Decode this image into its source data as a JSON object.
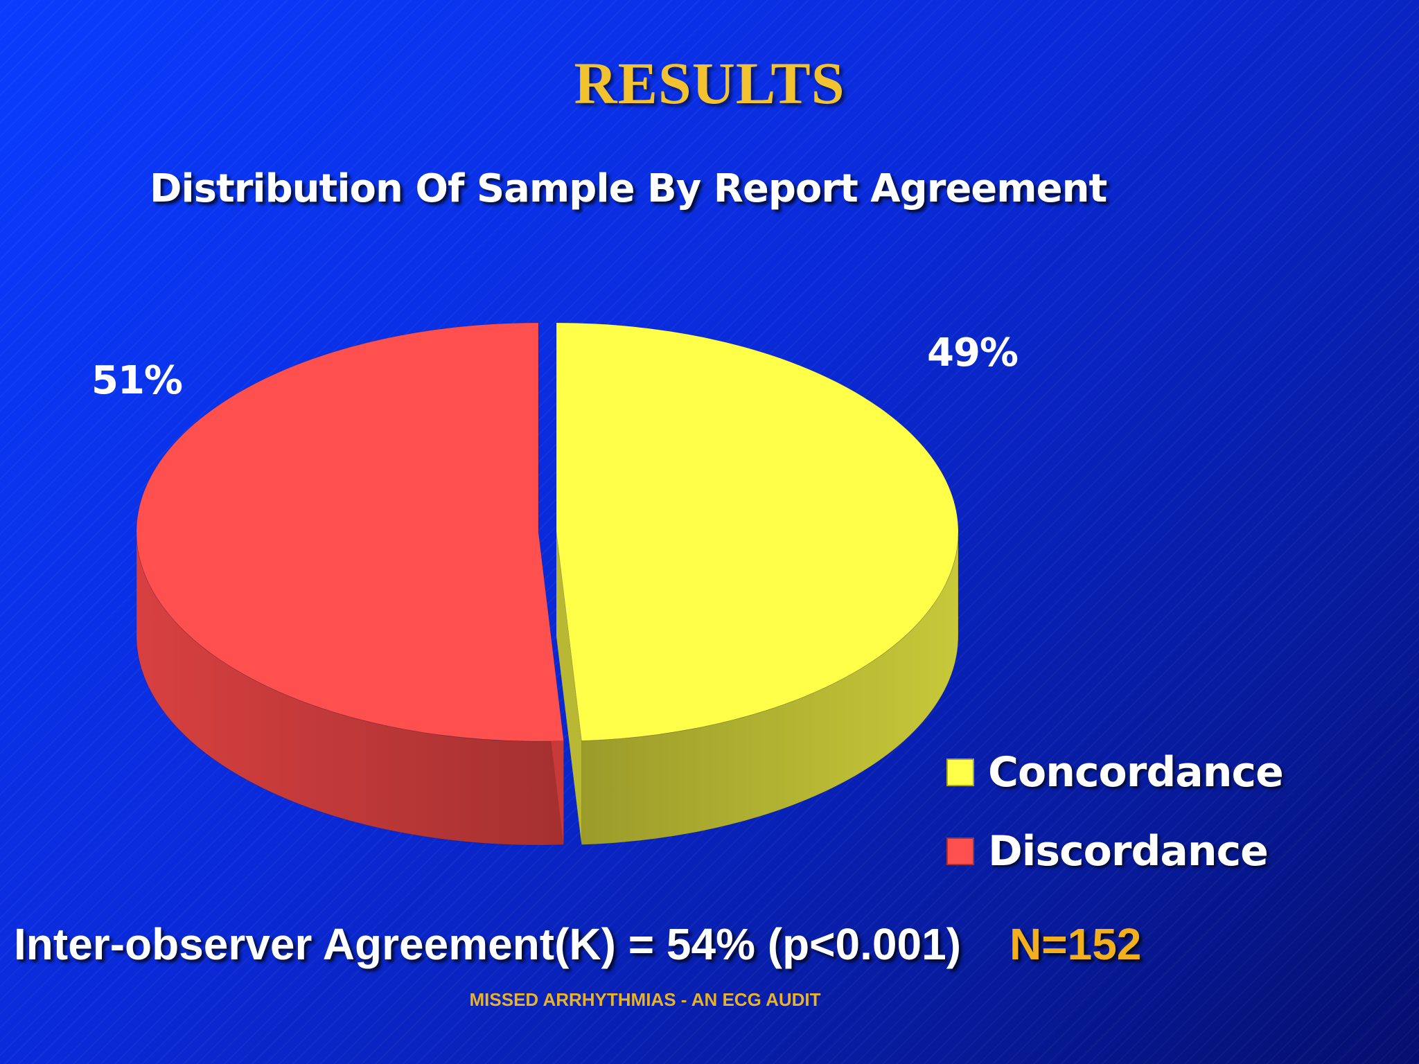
{
  "slide": {
    "title": "RESULTS",
    "footer": {
      "agreement_text": "Inter-observer Agreement(K) = 54%  (p<0.001)",
      "sample_size": "N=152",
      "note": "MISSED ARRHYTHMIAS - AN ECG AUDIT"
    }
  },
  "chart_data": {
    "type": "pie",
    "title": "Distribution Of Sample By Report Agreement",
    "categories": [
      "Concordance",
      "Discordance"
    ],
    "values": [
      49,
      51
    ],
    "labels": [
      "49%",
      "51%"
    ],
    "colors": [
      "#ffff4a",
      "#ff5050"
    ],
    "style": "3d-exploded",
    "legend_position": "bottom-right"
  }
}
